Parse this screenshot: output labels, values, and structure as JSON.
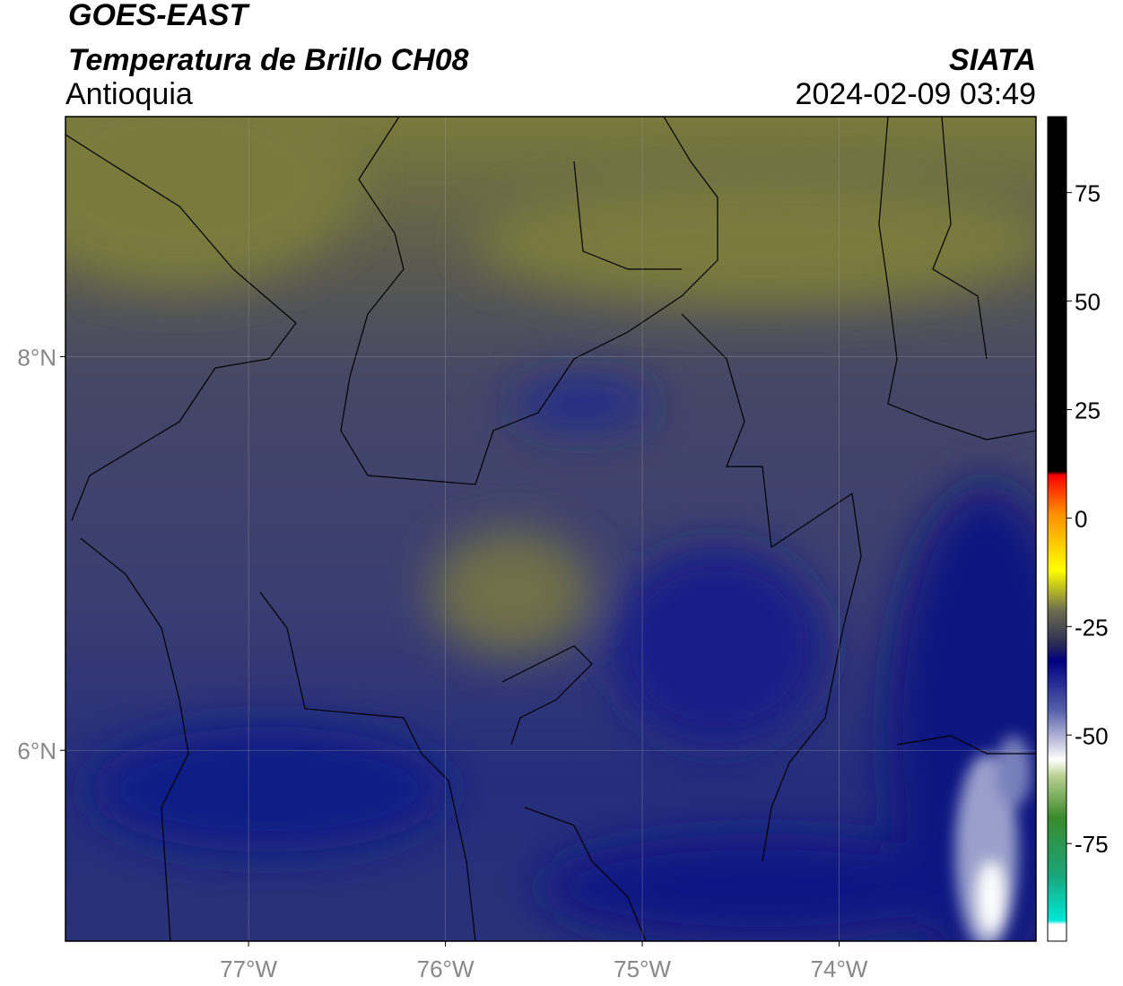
{
  "map": {
    "title": "GOES-EAST",
    "subtitle": "Temperatura de Brillo CH08",
    "region": "Antioquia",
    "source": "SIATA",
    "datetime": "2024-02-09 03:49",
    "xlim": [
      -77.93,
      -73.0
    ],
    "ylim": [
      5.03,
      9.22
    ],
    "xticks": [
      {
        "value": -77,
        "label": "77°W"
      },
      {
        "value": -76,
        "label": "76°W"
      },
      {
        "value": -75,
        "label": "75°W"
      },
      {
        "value": -74,
        "label": "74°W"
      }
    ],
    "yticks": [
      {
        "value": 8,
        "label": "8°N"
      },
      {
        "value": 6,
        "label": "6°N"
      }
    ],
    "grid": true,
    "colorbar": {
      "lim": [
        -97.5,
        92.5
      ],
      "ticks": [
        75,
        50,
        25,
        0,
        -25,
        -50,
        -75
      ]
    }
  }
}
